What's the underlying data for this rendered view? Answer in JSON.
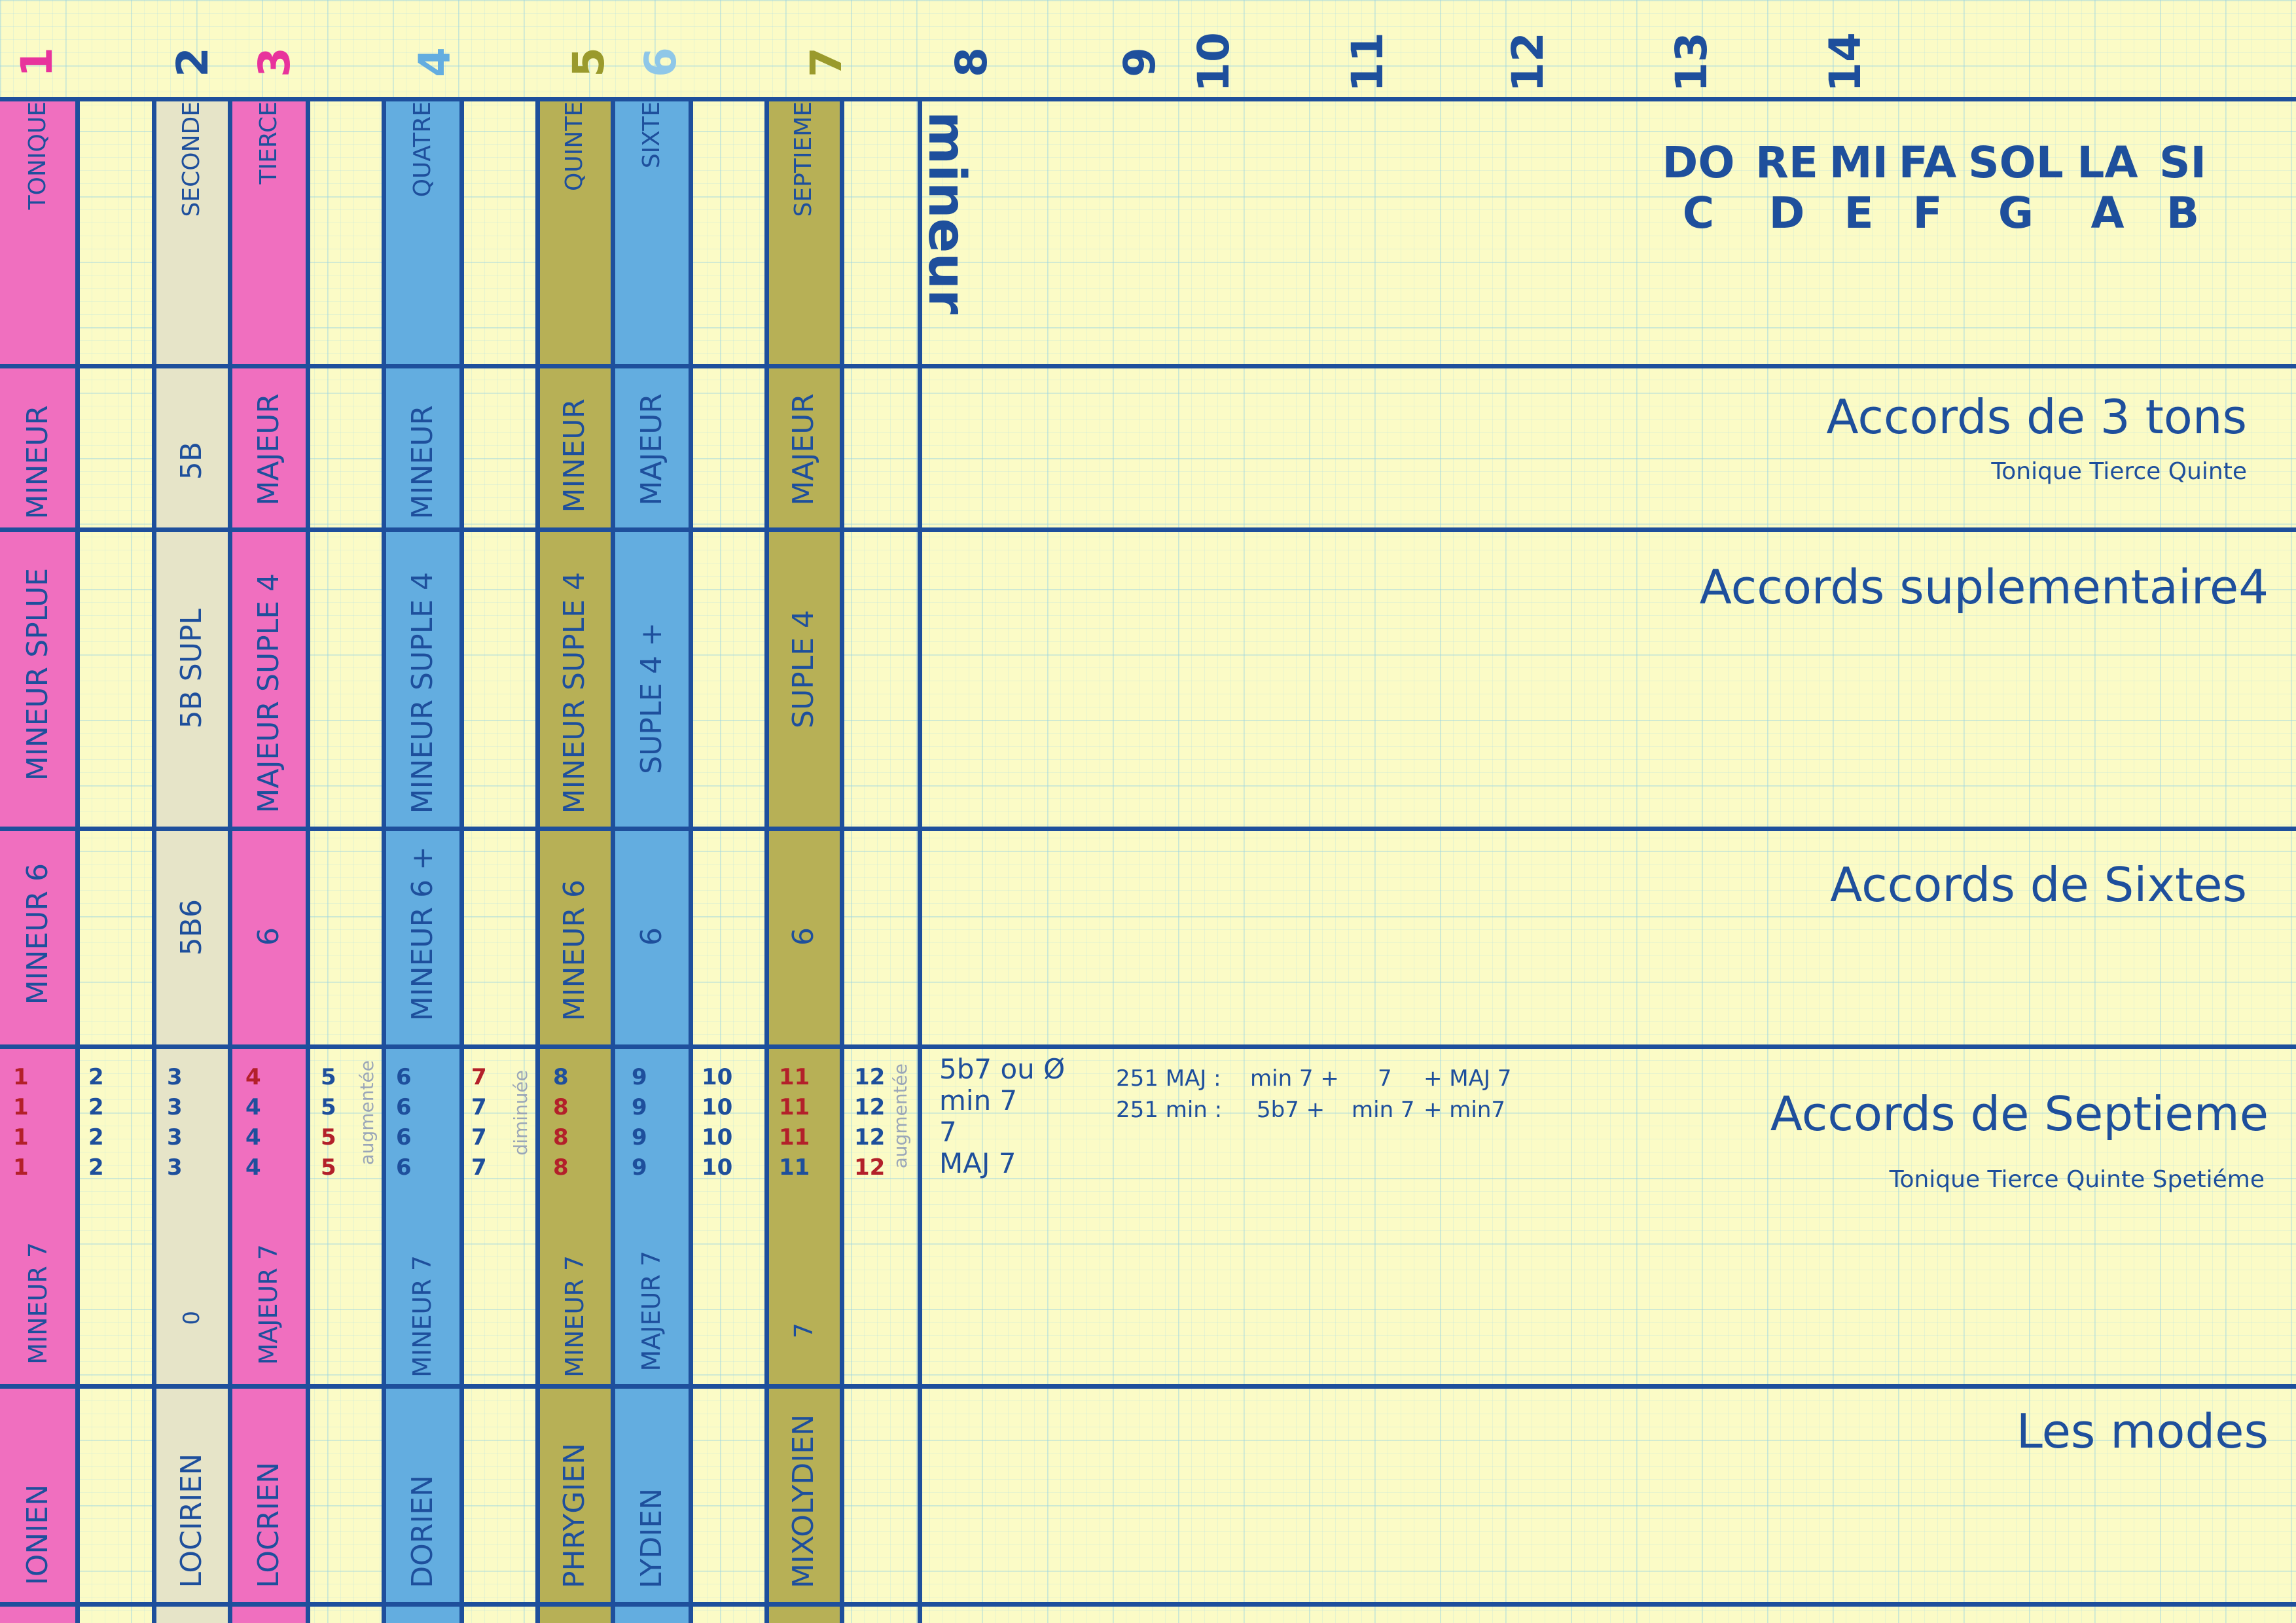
{
  "colors": {
    "pink": "#f06fbf",
    "beige": "#e6e4c8",
    "blue": "#63ade0",
    "olive": "#b7b056",
    "line": "#1e4f9c",
    "paper": "#fbfbc6"
  },
  "column_numbers": [
    {
      "n": "1",
      "color": "#e8339c"
    },
    {
      "n": "2",
      "color": "#1e4f9c"
    },
    {
      "n": "3",
      "color": "#e8339c"
    },
    {
      "n": "4",
      "color": "#63ade0"
    },
    {
      "n": "5",
      "color": "#9a9a2c"
    },
    {
      "n": "6",
      "color": "#8fc7e8"
    },
    {
      "n": "7",
      "color": "#9a9a2c"
    },
    {
      "n": "8",
      "color": "#1e4f9c"
    },
    {
      "n": "9",
      "color": "#1e4f9c"
    },
    {
      "n": "10",
      "color": "#1e4f9c"
    },
    {
      "n": "11",
      "color": "#1e4f9c"
    },
    {
      "n": "12",
      "color": "#1e4f9c"
    },
    {
      "n": "13",
      "color": "#1e4f9c"
    },
    {
      "n": "14",
      "color": "#1e4f9c"
    }
  ],
  "header": {
    "degrees": {
      "tonique": "TONIQUE",
      "seconde": "SECONDE",
      "tierce": "TIERCE",
      "quatre": "QUATRE",
      "quinte": "QUINTE",
      "sixte": "SIXTE",
      "septieme": "SEPTIEME"
    },
    "mode_label": "mineur",
    "notes": [
      {
        "solfege": "DO",
        "letter": "C"
      },
      {
        "solfege": "RE",
        "letter": "D"
      },
      {
        "solfege": "MI",
        "letter": "E"
      },
      {
        "solfege": "FA",
        "letter": "F"
      },
      {
        "solfege": "SOL",
        "letter": "G"
      },
      {
        "solfege": "LA",
        "letter": "A"
      },
      {
        "solfege": "SI",
        "letter": "B"
      }
    ]
  },
  "rows": {
    "triads": {
      "title": "Accords de 3 tons",
      "subtitle": "Tonique Tierce Quinte",
      "cells": {
        "c1": "MINEUR",
        "c3": "5B",
        "c4": "MAJEUR",
        "c6": "MINEUR",
        "c8": "MINEUR",
        "c9": "MAJEUR",
        "c11": "MAJEUR"
      }
    },
    "supl": {
      "title": "Accords suplementaire4",
      "cells": {
        "c1": "MINEUR SPLUE",
        "c3": "5B SUPL",
        "c4": "MAJEUR SUPLE 4",
        "c6": "MINEUR SUPLE  4",
        "c8": "MINEUR SUPLE  4",
        "c9": "SUPLE  4  +",
        "c11": "SUPLE  4"
      }
    },
    "sixtes": {
      "title": "Accords de Sixtes",
      "cells": {
        "c1": "MINEUR 6",
        "c3": "5B6",
        "c4": "6",
        "c6": "MINEUR 6 +",
        "c8": "MINEUR 6",
        "c9": "6",
        "c11": "6"
      }
    },
    "septieme": {
      "title": "Accords de Septieme",
      "subtitle": "Tonique Tierce Quinte Spetiéme",
      "digits": {
        "c1": [
          "1",
          "1",
          "1",
          "1"
        ],
        "c2": [
          "2",
          "2",
          "2",
          "2"
        ],
        "c3": [
          "3",
          "3",
          "3",
          "3"
        ],
        "c4": [
          "4",
          "4",
          "4",
          "4"
        ],
        "c5": [
          "5",
          "5",
          "5",
          "5"
        ],
        "c6": [
          "6",
          "6",
          "6",
          "6"
        ],
        "c7": [
          "7",
          "7",
          "7",
          "7"
        ],
        "c8": [
          "8",
          "8",
          "8",
          "8"
        ],
        "c9": [
          "9",
          "9",
          "9",
          "9"
        ],
        "c10": [
          "10",
          "10",
          "10",
          "10"
        ],
        "c11": [
          "11",
          "11",
          "11",
          "11"
        ],
        "c12": [
          "12",
          "12",
          "12",
          "12"
        ]
      },
      "digit_colors": {
        "c1": [
          "#b3202a",
          "#b3202a",
          "#b3202a",
          "#b3202a"
        ],
        "c2": [
          "#1e4f9c",
          "#1e4f9c",
          "#1e4f9c",
          "#1e4f9c"
        ],
        "c3": [
          "#1e4f9c",
          "#1e4f9c",
          "#1e4f9c",
          "#1e4f9c"
        ],
        "c4": [
          "#b3202a",
          "#1e4f9c",
          "#1e4f9c",
          "#1e4f9c"
        ],
        "c5": [
          "#1e4f9c",
          "#1e4f9c",
          "#b3202a",
          "#b3202a"
        ],
        "c6": [
          "#1e4f9c",
          "#1e4f9c",
          "#1e4f9c",
          "#1e4f9c"
        ],
        "c7": [
          "#b3202a",
          "#1e4f9c",
          "#1e4f9c",
          "#1e4f9c"
        ],
        "c8": [
          "#1e4f9c",
          "#b3202a",
          "#b3202a",
          "#b3202a"
        ],
        "c9": [
          "#1e4f9c",
          "#1e4f9c",
          "#1e4f9c",
          "#1e4f9c"
        ],
        "c10": [
          "#1e4f9c",
          "#1e4f9c",
          "#1e4f9c",
          "#1e4f9c"
        ],
        "c11": [
          "#b3202a",
          "#b3202a",
          "#b3202a",
          "#1e4f9c"
        ],
        "c12": [
          "#1e4f9c",
          "#1e4f9c",
          "#1e4f9c",
          "#b3202a"
        ]
      },
      "aug_label": "augmentée",
      "dim_label": "diminuée",
      "cells": {
        "c1": "MINEUR 7",
        "c3": "0",
        "c4": "MAJEUR 7",
        "c6": "MINEUR 7",
        "c8": "MINEUR 7",
        "c9": "MAJEUR 7",
        "c11": "7"
      },
      "types": [
        "5b7 ou Ø",
        "min 7",
        "7",
        "MAJ 7"
      ],
      "progressions": [
        {
          "label": "251  MAJ :",
          "a": "min 7  +",
          "b": "7",
          "c": "+ MAJ 7"
        },
        {
          "label": "251  min :",
          "a": "5b7   +",
          "b": "min 7",
          "c": "+  min7"
        }
      ]
    },
    "modes": {
      "title": "Les modes",
      "cells": {
        "c1": "IONIEN",
        "c3": "LOCIRIEN",
        "c4": "LOCRIEN",
        "c6": "DORIEN",
        "c8": "PHRYGIEN",
        "c9": "LYDIEN",
        "c11": "MIXOLYDIEN"
      }
    }
  }
}
